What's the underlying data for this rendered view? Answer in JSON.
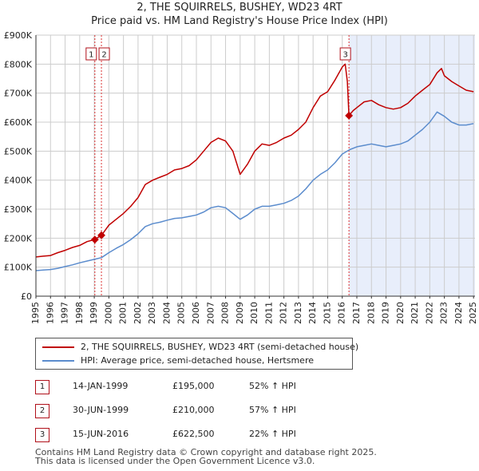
{
  "header": {
    "title_line1": "2, THE SQUIRRELS, BUSHEY, WD23 4RT",
    "title_line2": "Price paid vs. HM Land Registry's House Price Index (HPI)"
  },
  "colors": {
    "property": "#c00000",
    "hpi": "#5b8ccd",
    "shade": "#e8eefb",
    "grid": "#cccccc",
    "marker_border": "#b0101a"
  },
  "legend": {
    "property_label": "2, THE SQUIRRELS, BUSHEY, WD23 4RT (semi-detached house)",
    "hpi_label": "HPI: Average price, semi-detached house, Hertsmere"
  },
  "sales": [
    {
      "num": "1",
      "date": "14-JAN-1999",
      "price": "£195,000",
      "hpi_change": "52% ↑ HPI"
    },
    {
      "num": "2",
      "date": "30-JUN-1999",
      "price": "£210,000",
      "hpi_change": "57% ↑ HPI"
    },
    {
      "num": "3",
      "date": "15-JUN-2016",
      "price": "£622,500",
      "hpi_change": "22% ↑ HPI"
    }
  ],
  "footer": {
    "line1": "Contains HM Land Registry data © Crown copyright and database right 2025.",
    "line2": "This data is licensed under the Open Government Licence v3.0."
  },
  "chart_data": {
    "type": "line",
    "title": "2, THE SQUIRRELS, BUSHEY, WD23 4RT — Price paid vs. HM Land Registry's House Price Index (HPI)",
    "xlabel": "",
    "ylabel": "",
    "xlim": [
      1995.0,
      2025.1
    ],
    "ylim": [
      0,
      900000
    ],
    "x_ticks": [
      1995,
      1996,
      1997,
      1998,
      1999,
      2000,
      2001,
      2002,
      2003,
      2004,
      2005,
      2006,
      2007,
      2008,
      2009,
      2010,
      2011,
      2012,
      2013,
      2014,
      2015,
      2016,
      2017,
      2018,
      2019,
      2020,
      2021,
      2022,
      2023,
      2024,
      2025
    ],
    "y_ticks": [
      0,
      100000,
      200000,
      300000,
      400000,
      500000,
      600000,
      700000,
      800000,
      900000
    ],
    "y_tick_labels": [
      "£0",
      "£100K",
      "£200K",
      "£300K",
      "£400K",
      "£500K",
      "£600K",
      "£700K",
      "£800K",
      "£900K"
    ],
    "grid": true,
    "forecast_shade_from": 2016.46,
    "series": [
      {
        "name": "2, THE SQUIRRELS, BUSHEY, WD23 4RT (semi-detached house)",
        "color": "#c00000",
        "x": [
          1995.0,
          1995.5,
          1996.0,
          1996.5,
          1997.0,
          1997.5,
          1998.0,
          1998.5,
          1999.0,
          1999.5,
          2000.0,
          2000.5,
          2001.0,
          2001.5,
          2002.0,
          2002.5,
          2003.0,
          2003.5,
          2004.0,
          2004.5,
          2005.0,
          2005.5,
          2006.0,
          2006.5,
          2007.0,
          2007.5,
          2008.0,
          2008.5,
          2009.0,
          2009.5,
          2010.0,
          2010.5,
          2011.0,
          2011.5,
          2012.0,
          2012.5,
          2013.0,
          2013.5,
          2014.0,
          2014.5,
          2015.0,
          2015.5,
          2016.0,
          2016.2,
          2016.35,
          2016.46,
          2016.75,
          2017.0,
          2017.5,
          2018.0,
          2018.5,
          2019.0,
          2019.5,
          2020.0,
          2020.5,
          2021.0,
          2021.5,
          2022.0,
          2022.5,
          2022.8,
          2023.0,
          2023.5,
          2024.0,
          2024.5,
          2025.0
        ],
        "values": [
          135000,
          138000,
          140000,
          150000,
          158000,
          168000,
          175000,
          188000,
          195000,
          210000,
          245000,
          265000,
          285000,
          310000,
          340000,
          385000,
          400000,
          410000,
          420000,
          435000,
          440000,
          450000,
          470000,
          500000,
          530000,
          545000,
          535000,
          500000,
          420000,
          455000,
          500000,
          525000,
          520000,
          530000,
          545000,
          555000,
          575000,
          600000,
          650000,
          690000,
          705000,
          745000,
          790000,
          800000,
          740000,
          622500,
          640000,
          650000,
          670000,
          675000,
          660000,
          650000,
          645000,
          650000,
          665000,
          690000,
          710000,
          730000,
          770000,
          785000,
          760000,
          740000,
          725000,
          710000,
          705000
        ]
      },
      {
        "name": "HPI: Average price, semi-detached house, Hertsmere",
        "color": "#5b8ccd",
        "x": [
          1995.0,
          1995.5,
          1996.0,
          1996.5,
          1997.0,
          1997.5,
          1998.0,
          1998.5,
          1999.0,
          1999.5,
          2000.0,
          2000.5,
          2001.0,
          2001.5,
          2002.0,
          2002.5,
          2003.0,
          2003.5,
          2004.0,
          2004.5,
          2005.0,
          2005.5,
          2006.0,
          2006.5,
          2007.0,
          2007.5,
          2008.0,
          2008.5,
          2009.0,
          2009.5,
          2010.0,
          2010.5,
          2011.0,
          2011.5,
          2012.0,
          2012.5,
          2013.0,
          2013.5,
          2014.0,
          2014.5,
          2015.0,
          2015.5,
          2016.0,
          2016.5,
          2017.0,
          2017.5,
          2018.0,
          2018.5,
          2019.0,
          2019.5,
          2020.0,
          2020.5,
          2021.0,
          2021.5,
          2022.0,
          2022.5,
          2023.0,
          2023.5,
          2024.0,
          2024.5,
          2025.0
        ],
        "values": [
          88000,
          90000,
          92000,
          96000,
          102000,
          108000,
          115000,
          121000,
          127000,
          133000,
          150000,
          165000,
          178000,
          195000,
          215000,
          240000,
          250000,
          255000,
          262000,
          268000,
          270000,
          275000,
          280000,
          290000,
          305000,
          310000,
          305000,
          285000,
          265000,
          280000,
          300000,
          310000,
          310000,
          315000,
          320000,
          330000,
          345000,
          370000,
          400000,
          420000,
          435000,
          460000,
          490000,
          505000,
          515000,
          520000,
          525000,
          520000,
          515000,
          520000,
          525000,
          535000,
          555000,
          575000,
          600000,
          635000,
          620000,
          600000,
          590000,
          590000,
          595000
        ]
      }
    ],
    "sale_points": [
      {
        "label": "1",
        "x": 1999.04,
        "value": 195000
      },
      {
        "label": "2",
        "x": 1999.49,
        "value": 210000
      },
      {
        "label": "3",
        "x": 2016.46,
        "value": 622500
      }
    ]
  }
}
